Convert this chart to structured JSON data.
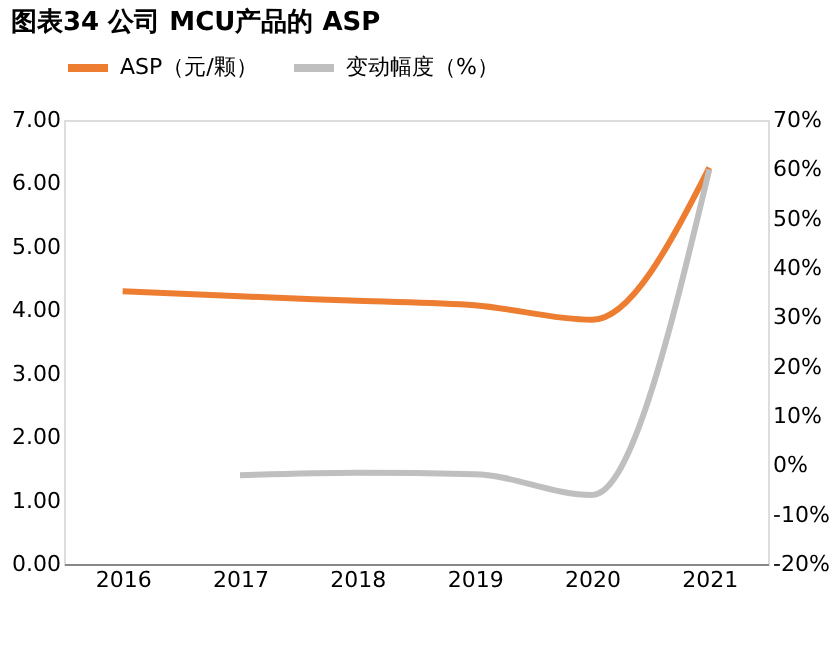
{
  "chart_data": {
    "type": "line",
    "title": "图表34   公司 MCU产品的 ASP",
    "categories": [
      "2016",
      "2017",
      "2018",
      "2019",
      "2020",
      "2021"
    ],
    "series": [
      {
        "name": "ASP（元/颗）",
        "color": "#ed7d31",
        "values": [
          4.3,
          4.22,
          4.15,
          4.08,
          3.85,
          6.25
        ]
      },
      {
        "name": "变动幅度（%）",
        "color": "#bfbfbf",
        "axis": "y2",
        "values": [
          null,
          -2,
          -1.5,
          -1.8,
          -6,
          60
        ]
      }
    ],
    "ylim": [
      0,
      7
    ],
    "yticks": [
      {
        "value": 0,
        "label": "0.00"
      },
      {
        "value": 1,
        "label": "1.00"
      },
      {
        "value": 2,
        "label": "2.00"
      },
      {
        "value": 3,
        "label": "3.00"
      },
      {
        "value": 4,
        "label": "4.00"
      },
      {
        "value": 5,
        "label": "5.00"
      },
      {
        "value": 6,
        "label": "6.00"
      },
      {
        "value": 7,
        "label": "7.00"
      }
    ],
    "y2lim": [
      -20,
      70
    ],
    "y2ticks": [
      {
        "value": -20,
        "label": "-20%"
      },
      {
        "value": -10,
        "label": "-10%"
      },
      {
        "value": 0,
        "label": "0%"
      },
      {
        "value": 10,
        "label": "10%"
      },
      {
        "value": 20,
        "label": "20%"
      },
      {
        "value": 30,
        "label": "30%"
      },
      {
        "value": 40,
        "label": "40%"
      },
      {
        "value": 50,
        "label": "50%"
      },
      {
        "value": 60,
        "label": "60%"
      },
      {
        "value": 70,
        "label": "70%"
      }
    ],
    "legend": "top",
    "grid": false,
    "marker": "none",
    "line_style": "solid"
  }
}
